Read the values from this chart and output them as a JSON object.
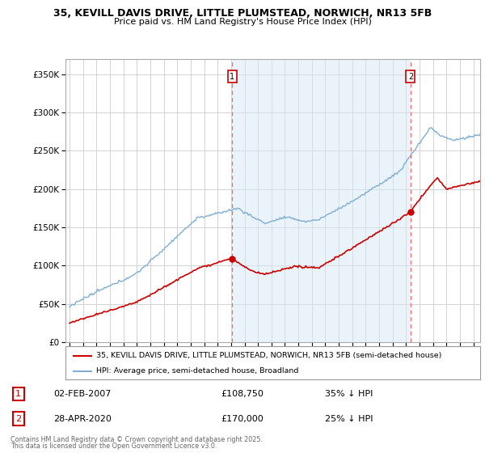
{
  "title_line1": "35, KEVILL DAVIS DRIVE, LITTLE PLUMSTEAD, NORWICH, NR13 5FB",
  "title_line2": "Price paid vs. HM Land Registry's House Price Index (HPI)",
  "ylabel_ticks": [
    "£0",
    "£50K",
    "£100K",
    "£150K",
    "£200K",
    "£250K",
    "£300K",
    "£350K"
  ],
  "ytick_vals": [
    0,
    50000,
    100000,
    150000,
    200000,
    250000,
    300000,
    350000
  ],
  "ylim": [
    0,
    370000
  ],
  "xlim_start": 1994.7,
  "xlim_end": 2025.5,
  "xticks": [
    1995,
    1996,
    1997,
    1998,
    1999,
    2000,
    2001,
    2002,
    2003,
    2004,
    2005,
    2006,
    2007,
    2008,
    2009,
    2010,
    2011,
    2012,
    2013,
    2014,
    2015,
    2016,
    2017,
    2018,
    2019,
    2020,
    2021,
    2022,
    2023,
    2024,
    2025
  ],
  "hpi_color": "#7eaed4",
  "hpi_fill_color": "#d6e8f5",
  "price_color": "#cc0000",
  "vline_color": "#ff6666",
  "annotation_border_color": "#cc0000",
  "background_color": "#ffffff",
  "grid_color": "#cccccc",
  "legend_label_price": "35, KEVILL DAVIS DRIVE, LITTLE PLUMSTEAD, NORWICH, NR13 5FB (semi-detached house)",
  "legend_label_hpi": "HPI: Average price, semi-detached house, Broadland",
  "sale1_date": 2007.08,
  "sale1_price": 108750,
  "sale1_label": "1",
  "sale2_date": 2020.33,
  "sale2_price": 170000,
  "sale2_label": "2",
  "footer_line1": "Contains HM Land Registry data © Crown copyright and database right 2025.",
  "footer_line2": "This data is licensed under the Open Government Licence v3.0.",
  "info1_label": "1",
  "info1_date": "02-FEB-2007",
  "info1_price": "£108,750",
  "info1_note": "35% ↓ HPI",
  "info2_label": "2",
  "info2_date": "28-APR-2020",
  "info2_price": "£170,000",
  "info2_note": "25% ↓ HPI"
}
